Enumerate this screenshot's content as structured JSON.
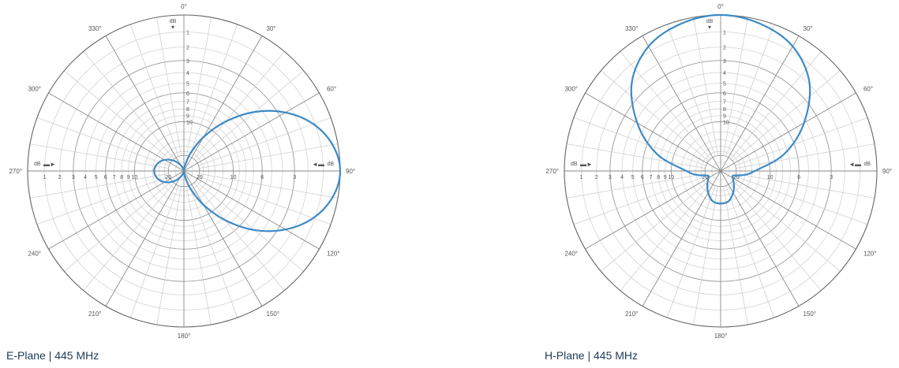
{
  "chart_data": [
    {
      "type": "polar",
      "caption": "E-Plane | 445 MHz",
      "radial_unit": "dB",
      "angle_labels": [
        "0°",
        "30°",
        "60°",
        "90°",
        "120°",
        "150°",
        "180°",
        "210°",
        "240°",
        "270°",
        "300°",
        "330°"
      ],
      "up_tick_labels": [
        "1",
        "2",
        "3",
        "4",
        "5",
        "6",
        "7",
        "8",
        "9",
        "10"
      ],
      "left_tick_labels": [
        "1",
        "2",
        "3",
        "4",
        "5",
        "6",
        "7",
        "8",
        "9",
        "10",
        "20"
      ],
      "right_tick_labels": [
        "20",
        "10",
        "6",
        "3"
      ],
      "rlim_db": [
        -40,
        0
      ],
      "color": "#3d8ac6",
      "points": [
        [
          0,
          -40
        ],
        [
          10,
          -30
        ],
        [
          20,
          -18.6
        ],
        [
          30,
          -12
        ],
        [
          40,
          -7.7
        ],
        [
          50,
          -4.6
        ],
        [
          60,
          -2.5
        ],
        [
          70,
          -1.1
        ],
        [
          80,
          -0.3
        ],
        [
          90,
          0
        ],
        [
          100,
          -0.3
        ],
        [
          110,
          -1.1
        ],
        [
          120,
          -2.5
        ],
        [
          130,
          -4.6
        ],
        [
          140,
          -7.7
        ],
        [
          150,
          -12
        ],
        [
          160,
          -18.6
        ],
        [
          170,
          -30
        ],
        [
          180,
          -40
        ],
        [
          190,
          -40
        ],
        [
          200,
          -33
        ],
        [
          210,
          -26.5
        ],
        [
          220,
          -22.1
        ],
        [
          230,
          -19.1
        ],
        [
          240,
          -16.9
        ],
        [
          250,
          -15.5
        ],
        [
          260,
          -14.7
        ],
        [
          270,
          -14.4
        ],
        [
          280,
          -14.7
        ],
        [
          290,
          -15.5
        ],
        [
          300,
          -16.9
        ],
        [
          310,
          -19.1
        ],
        [
          320,
          -22.1
        ],
        [
          330,
          -26.5
        ],
        [
          340,
          -33
        ],
        [
          350,
          -40
        ]
      ]
    },
    {
      "type": "polar",
      "caption": "H-Plane | 445 MHz",
      "radial_unit": "dB",
      "angle_labels": [
        "0°",
        "30°",
        "60°",
        "90°",
        "120°",
        "150°",
        "180°",
        "210°",
        "240°",
        "270°",
        "300°",
        "330°"
      ],
      "up_tick_labels": [
        "1",
        "2",
        "3",
        "4",
        "5",
        "6",
        "7",
        "8",
        "9",
        "10"
      ],
      "left_tick_labels": [
        "1",
        "2",
        "3",
        "4",
        "5",
        "6",
        "7",
        "8",
        "9",
        "10",
        "20"
      ],
      "right_tick_labels": [
        "20",
        "10",
        "6",
        "3"
      ],
      "rlim_db": [
        -40,
        0
      ],
      "color": "#3d8ac6",
      "points": [
        [
          0,
          0
        ],
        [
          15,
          -0.2
        ],
        [
          30,
          -0.7
        ],
        [
          45,
          -1.9
        ],
        [
          60,
          -4.2
        ],
        [
          75,
          -7.5
        ],
        [
          90,
          -13.2
        ],
        [
          100,
          -16.5
        ],
        [
          110,
          -21.3
        ],
        [
          120,
          -20.9
        ],
        [
          135,
          -18.4
        ],
        [
          150,
          -15.9
        ],
        [
          165,
          -14
        ],
        [
          180,
          -13.6
        ],
        [
          195,
          -14
        ],
        [
          210,
          -15.9
        ],
        [
          225,
          -18.4
        ],
        [
          240,
          -20.9
        ],
        [
          250,
          -21.3
        ],
        [
          260,
          -16.5
        ],
        [
          270,
          -13.2
        ],
        [
          285,
          -7.5
        ],
        [
          300,
          -4.2
        ],
        [
          315,
          -1.9
        ],
        [
          330,
          -0.7
        ],
        [
          345,
          -0.2
        ]
      ]
    }
  ]
}
